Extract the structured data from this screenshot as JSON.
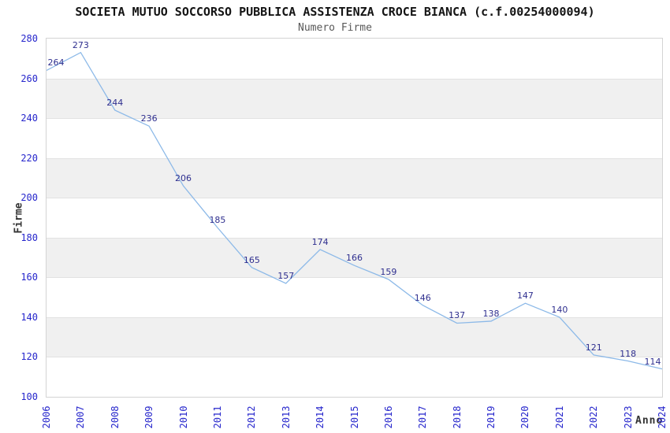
{
  "header": {
    "title": "SOCIETA MUTUO SOCCORSO PUBBLICA ASSISTENZA CROCE BIANCA (c.f.00254000094)",
    "subtitle": "Numero Firme"
  },
  "chart_data": {
    "type": "line",
    "title": "SOCIETA MUTUO SOCCORSO PUBBLICA ASSISTENZA CROCE BIANCA (c.f.00254000094)",
    "subtitle": "Numero Firme",
    "xlabel": "Anno",
    "ylabel": "Firme",
    "x": [
      2006,
      2007,
      2008,
      2009,
      2010,
      2011,
      2012,
      2013,
      2014,
      2015,
      2016,
      2017,
      2018,
      2019,
      2020,
      2021,
      2022,
      2023,
      2024
    ],
    "series": [
      {
        "name": "Numero Firme",
        "values": [
          264,
          273,
          244,
          236,
          206,
          185,
          165,
          157,
          174,
          166,
          159,
          146,
          137,
          138,
          147,
          140,
          121,
          118,
          114
        ]
      }
    ],
    "ylim": [
      100,
      280
    ],
    "ytick_step": 20,
    "yticks": [
      280,
      260,
      240,
      220,
      200,
      180,
      160,
      140,
      120,
      100
    ],
    "point_labels_visible": true,
    "legend_position": "none",
    "grid": "horizontal-alternating-bands",
    "colors": {
      "line": "#8cb9e8",
      "point_label": "#2f2f8f",
      "tick_label": "#2626cc",
      "band_gray": "#f0f0f0",
      "band_white": "#ffffff",
      "gridline": "#e2e2e2",
      "plot_border": "#d4d4d4",
      "title": "#141414",
      "subtitle": "#595959",
      "axis_title": "#333333"
    }
  }
}
